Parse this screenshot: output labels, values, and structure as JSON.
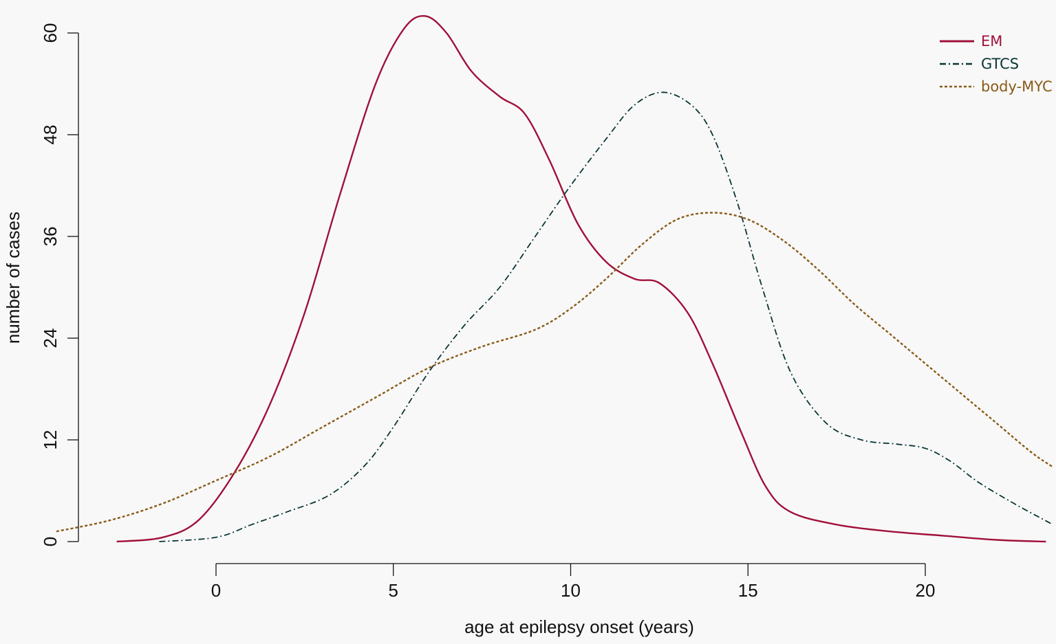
{
  "chart_data": {
    "type": "line",
    "title": "",
    "xlabel": "age at epilepsy onset (years)",
    "ylabel": "number of cases",
    "xlim": [
      -4.5,
      23.6
    ],
    "ylim": [
      0,
      62
    ],
    "x_ticks": [
      0,
      5,
      10,
      15,
      20
    ],
    "y_ticks": [
      0,
      12,
      24,
      36,
      48,
      60
    ],
    "grid": false,
    "legend_position": "top-right",
    "series": [
      {
        "name": "EM",
        "color": "#a0103a",
        "dash": "solid",
        "points": [
          [
            -2.8,
            0
          ],
          [
            -1.5,
            0.5
          ],
          [
            -0.5,
            2.5
          ],
          [
            0.5,
            8
          ],
          [
            1.5,
            16
          ],
          [
            2.5,
            27
          ],
          [
            3.5,
            41
          ],
          [
            4.5,
            54
          ],
          [
            5.3,
            60.5
          ],
          [
            5.9,
            62
          ],
          [
            6.5,
            60
          ],
          [
            7.2,
            55.5
          ],
          [
            8.0,
            52.5
          ],
          [
            8.7,
            50.5
          ],
          [
            9.4,
            45
          ],
          [
            10.2,
            37.5
          ],
          [
            11.0,
            33
          ],
          [
            11.8,
            31
          ],
          [
            12.5,
            30.5
          ],
          [
            13.3,
            27
          ],
          [
            14.0,
            21
          ],
          [
            14.8,
            13
          ],
          [
            15.5,
            6.5
          ],
          [
            16.2,
            3.5
          ],
          [
            17.5,
            2
          ],
          [
            19.0,
            1.2
          ],
          [
            20.5,
            0.7
          ],
          [
            22.0,
            0.2
          ],
          [
            23.4,
            0
          ]
        ]
      },
      {
        "name": "GTCS",
        "color": "#0a3535",
        "dash": "dashdot",
        "points": [
          [
            -1.6,
            0
          ],
          [
            0,
            0.5
          ],
          [
            1.0,
            2
          ],
          [
            2.0,
            3.5
          ],
          [
            3.2,
            5.5
          ],
          [
            4.2,
            9
          ],
          [
            5.0,
            13.5
          ],
          [
            6.0,
            20
          ],
          [
            7.0,
            25.5
          ],
          [
            8.0,
            30
          ],
          [
            9.0,
            36
          ],
          [
            10.0,
            42
          ],
          [
            11.0,
            47.5
          ],
          [
            11.8,
            51.5
          ],
          [
            12.6,
            53
          ],
          [
            13.4,
            51.5
          ],
          [
            14.0,
            48
          ],
          [
            14.7,
            40
          ],
          [
            15.4,
            30
          ],
          [
            16.2,
            20
          ],
          [
            17.2,
            14
          ],
          [
            18.2,
            12
          ],
          [
            19.2,
            11.5
          ],
          [
            20.0,
            11
          ],
          [
            20.7,
            9.5
          ],
          [
            21.5,
            7
          ],
          [
            22.5,
            4.5
          ],
          [
            23.6,
            2
          ]
        ]
      },
      {
        "name": "body-MYC",
        "color": "#8a5a18",
        "dash": "dotted",
        "points": [
          [
            -4.5,
            1.2
          ],
          [
            -3,
            2.5
          ],
          [
            -1.5,
            4.5
          ],
          [
            0,
            7.2
          ],
          [
            1.5,
            10
          ],
          [
            3,
            13.5
          ],
          [
            4.5,
            17
          ],
          [
            6,
            20.5
          ],
          [
            7.5,
            23
          ],
          [
            9,
            25
          ],
          [
            10,
            27.5
          ],
          [
            11,
            31
          ],
          [
            12,
            35
          ],
          [
            13,
            38
          ],
          [
            14,
            38.8
          ],
          [
            15,
            38
          ],
          [
            16,
            35.5
          ],
          [
            17,
            32
          ],
          [
            18,
            28
          ],
          [
            19,
            24.5
          ],
          [
            20,
            21
          ],
          [
            21,
            17.5
          ],
          [
            22,
            14
          ],
          [
            23,
            10.5
          ],
          [
            23.6,
            8.8
          ]
        ]
      }
    ]
  }
}
